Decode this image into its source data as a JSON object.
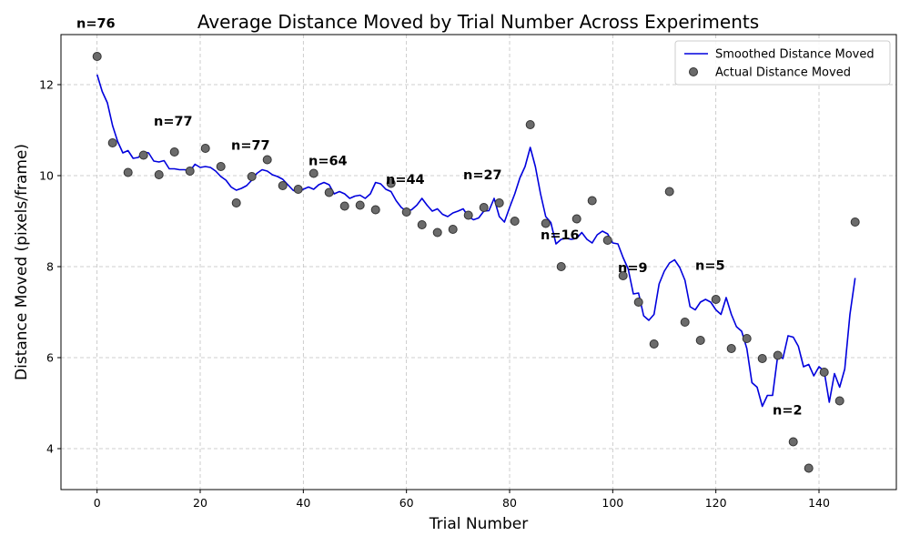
{
  "chart_data": {
    "type": "line",
    "title": "Average Distance Moved by Trial Number Across Experiments",
    "xlabel": "Trial Number",
    "ylabel": "Distance Moved (pixels/frame)",
    "xlim": [
      -7,
      155
    ],
    "ylim": [
      3.1,
      13.1
    ],
    "xticks": [
      0,
      20,
      40,
      60,
      80,
      100,
      120,
      140
    ],
    "yticks": [
      4,
      6,
      8,
      10,
      12
    ],
    "grid": true,
    "legend_position": "top-right",
    "colors": {
      "smoothed": "#0000dd",
      "actual_fill": "#6b6b6b",
      "actual_edge": "#333333",
      "grid": "#c0c0c0"
    },
    "series": [
      {
        "name": "Smoothed Distance Moved",
        "kind": "line",
        "x": [
          0,
          1,
          2,
          3,
          4,
          5,
          6,
          7,
          8,
          9,
          10,
          11,
          12,
          13,
          14,
          15,
          16,
          17,
          18,
          19,
          20,
          21,
          22,
          23,
          24,
          25,
          26,
          27,
          28,
          29,
          30,
          31,
          32,
          33,
          34,
          35,
          36,
          37,
          38,
          39,
          40,
          41,
          42,
          43,
          44,
          45,
          46,
          47,
          48,
          49,
          50,
          51,
          52,
          53,
          54,
          55,
          56,
          57,
          58,
          59,
          60,
          61,
          62,
          63,
          64,
          65,
          66,
          67,
          68,
          69,
          70,
          71,
          72,
          73,
          74,
          75,
          76,
          77,
          78,
          79,
          80,
          81,
          82,
          83,
          84,
          85,
          86,
          87,
          88,
          89,
          90,
          91,
          92,
          93,
          94,
          95,
          96,
          97,
          98,
          99,
          100,
          101,
          102,
          103,
          104,
          105,
          106,
          107,
          108,
          109,
          110,
          111,
          112,
          113,
          114,
          115,
          116,
          117,
          118,
          119,
          120,
          121,
          122,
          123,
          124,
          125,
          126,
          127,
          128,
          129,
          130,
          131,
          132,
          133,
          134,
          135,
          136,
          137,
          138,
          139,
          140,
          141,
          142,
          143,
          144,
          145,
          146,
          147
        ],
        "y": [
          12.22,
          11.85,
          11.6,
          11.1,
          10.75,
          10.5,
          10.55,
          10.38,
          10.4,
          10.52,
          10.5,
          10.32,
          10.3,
          10.33,
          10.15,
          10.15,
          10.13,
          10.13,
          10.1,
          10.25,
          10.18,
          10.2,
          10.18,
          10.1,
          9.98,
          9.9,
          9.75,
          9.68,
          9.72,
          9.78,
          9.9,
          10.05,
          10.13,
          10.1,
          10.02,
          9.98,
          9.92,
          9.8,
          9.68,
          9.63,
          9.7,
          9.75,
          9.7,
          9.8,
          9.85,
          9.8,
          9.6,
          9.65,
          9.6,
          9.5,
          9.55,
          9.57,
          9.5,
          9.6,
          9.85,
          9.82,
          9.7,
          9.65,
          9.45,
          9.3,
          9.22,
          9.25,
          9.35,
          9.5,
          9.35,
          9.22,
          9.27,
          9.15,
          9.1,
          9.18,
          9.22,
          9.27,
          9.1,
          9.03,
          9.07,
          9.22,
          9.23,
          9.5,
          9.1,
          8.98,
          9.3,
          9.6,
          9.95,
          10.2,
          10.62,
          10.2,
          9.6,
          9.1,
          8.97,
          8.5,
          8.6,
          8.62,
          8.6,
          8.62,
          8.75,
          8.6,
          8.52,
          8.7,
          8.78,
          8.72,
          8.52,
          8.5,
          8.2,
          7.95,
          7.4,
          7.42,
          6.92,
          6.82,
          6.95,
          7.62,
          7.9,
          8.08,
          8.15,
          7.98,
          7.7,
          7.12,
          7.05,
          7.22,
          7.28,
          7.22,
          7.05,
          6.95,
          7.32,
          6.95,
          6.68,
          6.58,
          6.2,
          5.45,
          5.35,
          4.93,
          5.17,
          5.17,
          6.05,
          5.98,
          6.48,
          6.45,
          6.25,
          5.8,
          5.85,
          5.6,
          5.8,
          5.7,
          5.02,
          5.65,
          5.35,
          5.75,
          6.95,
          7.75
        ]
      },
      {
        "name": "Actual Distance Moved",
        "kind": "scatter",
        "x": [
          0,
          3,
          6,
          9,
          12,
          15,
          18,
          21,
          24,
          27,
          30,
          33,
          36,
          39,
          42,
          45,
          48,
          51,
          54,
          57,
          60,
          63,
          66,
          69,
          72,
          75,
          78,
          81,
          84,
          87,
          90,
          93,
          96,
          99,
          102,
          105,
          108,
          111,
          114,
          117,
          120,
          123,
          126,
          129,
          132,
          135,
          138,
          141,
          144,
          147
        ],
        "y": [
          12.62,
          10.72,
          10.07,
          10.45,
          10.02,
          10.52,
          10.1,
          10.6,
          10.2,
          9.4,
          9.98,
          10.35,
          9.78,
          9.7,
          10.05,
          9.63,
          9.33,
          9.35,
          9.25,
          9.83,
          9.2,
          8.92,
          8.75,
          8.82,
          9.13,
          9.3,
          9.4,
          9.0,
          11.12,
          8.95,
          8.0,
          9.05,
          9.45,
          8.58,
          7.8,
          7.22,
          6.3,
          9.65,
          6.78,
          6.38,
          7.28,
          6.2,
          6.42,
          5.98,
          6.05,
          4.15,
          3.57,
          5.68,
          5.05,
          8.98
        ]
      }
    ],
    "annotations": [
      {
        "text": "n=76",
        "x": -4,
        "y": 13.25
      },
      {
        "text": "n=77",
        "x": 11,
        "y": 11.1
      },
      {
        "text": "n=77",
        "x": 26,
        "y": 10.57
      },
      {
        "text": "n=64",
        "x": 41,
        "y": 10.23
      },
      {
        "text": "n=44",
        "x": 56,
        "y": 9.82
      },
      {
        "text": "n=27",
        "x": 71,
        "y": 9.92
      },
      {
        "text": "n=16",
        "x": 86,
        "y": 8.6
      },
      {
        "text": "n=9",
        "x": 101,
        "y": 7.88
      },
      {
        "text": "n=5",
        "x": 116,
        "y": 7.93
      },
      {
        "text": "n=2",
        "x": 131,
        "y": 4.75
      }
    ]
  }
}
